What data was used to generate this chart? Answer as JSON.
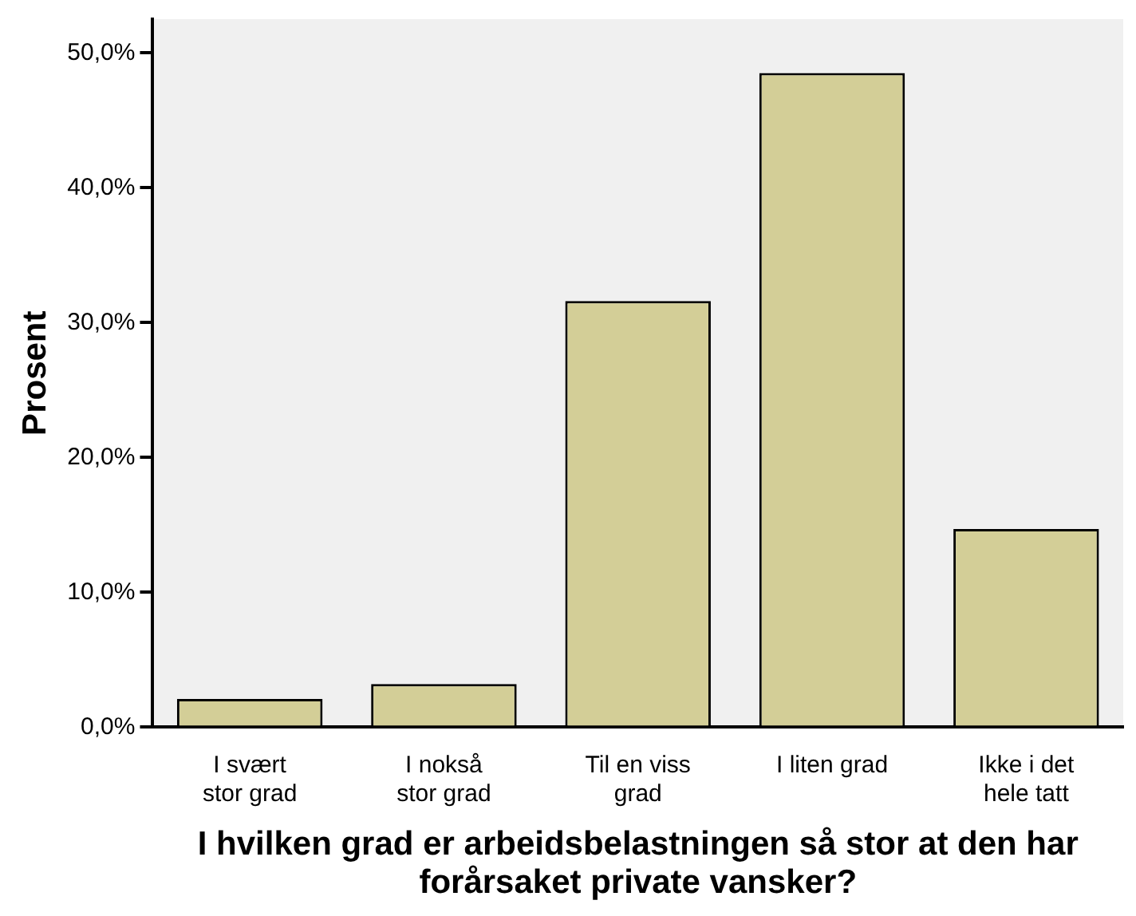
{
  "chart_data": {
    "type": "bar",
    "xlabel": "I hvilken grad er arbeidsbelastningen så stor at den har forårsaket private vansker?",
    "ylabel": "Prosent",
    "categories": [
      "I svært\nstor grad",
      "I nokså\nstor grad",
      "Til en viss\ngrad",
      "I liten grad",
      "Ikke i det\nhele tatt"
    ],
    "values": [
      2.1,
      3.2,
      31.6,
      48.5,
      14.7
    ],
    "color": "#d3ce97",
    "ylim": [
      0,
      52.5
    ],
    "yticks": [
      {
        "value": 0,
        "label": "0,0%"
      },
      {
        "value": 10,
        "label": "10,0%"
      },
      {
        "value": 20,
        "label": "20,0%"
      },
      {
        "value": 30,
        "label": "30,0%"
      },
      {
        "value": 40,
        "label": "40,0%"
      },
      {
        "value": 50,
        "label": "50,0%"
      }
    ],
    "grid": false,
    "legend": false
  }
}
